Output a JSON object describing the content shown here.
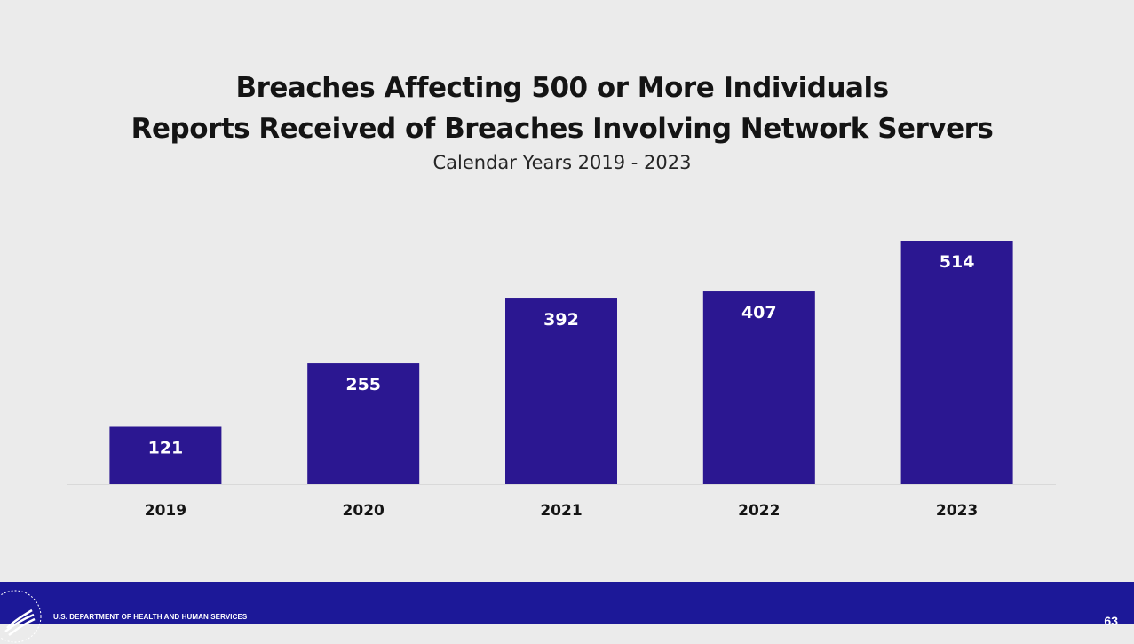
{
  "slide": {
    "title_lines": [
      "Breaches Affecting 500 or More Individuals",
      "Reports Received of Breaches Involving Network Servers"
    ],
    "subtitle": "Calendar Years 2019 - 2023"
  },
  "chart_data": {
    "type": "bar",
    "title": "Breaches Affecting 500 or More Individuals",
    "subtitle": "Reports Received of Breaches Involving Network Servers — Calendar Years 2019 - 2023",
    "categories": [
      "2019",
      "2020",
      "2021",
      "2022",
      "2023"
    ],
    "values": [
      121,
      255,
      392,
      407,
      514
    ],
    "xlabel": "",
    "ylabel": "",
    "ylim": [
      0,
      514
    ],
    "grid": false,
    "legend": "none",
    "data_labels": "inside-top",
    "bar_color": "#2b1791",
    "label_color": "#ffffff",
    "axis_color": "#d9d9d9"
  },
  "footer": {
    "org_name": "U.S. DEPARTMENT OF HEALTH AND HUMAN SERVICES",
    "page_number": "63",
    "background_color": "#1c1898",
    "logo_icon": "hhs-eagle-seal-icon"
  }
}
